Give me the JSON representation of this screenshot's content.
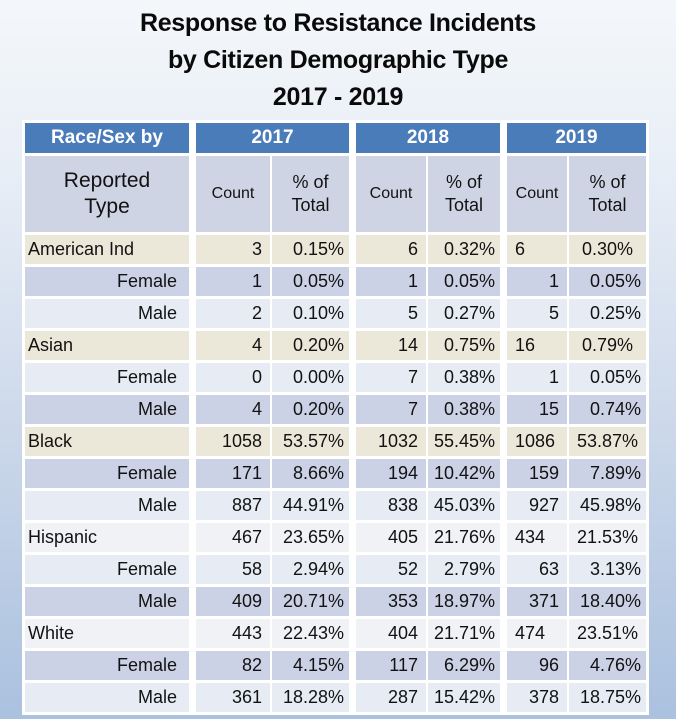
{
  "title": {
    "line1": "Response to Resistance Incidents",
    "line2": "by Citizen Demographic Type",
    "line3": "2017 - 2019"
  },
  "table": {
    "corner_header": "Race/Sex by",
    "row_header_line1": "Reported",
    "row_header_line2": "Type",
    "years": [
      "2017",
      "2018",
      "2019"
    ],
    "count_label": "Count",
    "pct_label_line1": "% of",
    "pct_label_line2": "Total"
  },
  "colors": {
    "header_blue": "#4b7cba",
    "header_gray": "#cfd4e4",
    "category_beige": "#ece8d9",
    "band_lavender": "#cbd2e6",
    "band_pale_blue": "#e6ebf4",
    "category_plain": "#f1f2f5",
    "page_top": "#f4f7fa",
    "page_bottom": "#aac1df"
  },
  "chart_data": {
    "type": "table",
    "title": "Response to Resistance Incidents by Citizen Demographic Type 2017 - 2019",
    "columns": [
      "Race/Sex by Reported Type",
      "2017 Count",
      "2017 % of Total",
      "2018 Count",
      "2018 % of Total",
      "2019 Count",
      "2019 % of Total"
    ],
    "rows": [
      {
        "label": "American Ind",
        "type": "category",
        "band": "beige",
        "values": [
          "3",
          "0.15%",
          "6",
          "0.32%",
          "6",
          "0.30%"
        ]
      },
      {
        "label": "Female",
        "type": "sub",
        "band": "dark",
        "values": [
          "1",
          "0.05%",
          "1",
          "0.05%",
          "1",
          "0.05%"
        ]
      },
      {
        "label": "Male",
        "type": "sub",
        "band": "light",
        "values": [
          "2",
          "0.10%",
          "5",
          "0.27%",
          "5",
          "0.25%"
        ]
      },
      {
        "label": "Asian",
        "type": "category",
        "band": "beige",
        "values": [
          "4",
          "0.20%",
          "14",
          "0.75%",
          "16",
          "0.79%"
        ]
      },
      {
        "label": "Female",
        "type": "sub",
        "band": "light",
        "values": [
          "0",
          "0.00%",
          "7",
          "0.38%",
          "1",
          "0.05%"
        ]
      },
      {
        "label": "Male",
        "type": "sub",
        "band": "dark",
        "values": [
          "4",
          "0.20%",
          "7",
          "0.38%",
          "15",
          "0.74%"
        ]
      },
      {
        "label": "Black",
        "type": "category",
        "band": "beige",
        "values": [
          "1058",
          "53.57%",
          "1032",
          "55.45%",
          "1086",
          "53.87%"
        ]
      },
      {
        "label": "Female",
        "type": "sub",
        "band": "dark",
        "values": [
          "171",
          "8.66%",
          "194",
          "10.42%",
          "159",
          "7.89%"
        ]
      },
      {
        "label": "Male",
        "type": "sub",
        "band": "light",
        "values": [
          "887",
          "44.91%",
          "838",
          "45.03%",
          "927",
          "45.98%"
        ]
      },
      {
        "label": "Hispanic",
        "type": "category",
        "band": "plain",
        "values": [
          "467",
          "23.65%",
          "405",
          "21.76%",
          "434",
          "21.53%"
        ]
      },
      {
        "label": "Female",
        "type": "sub",
        "band": "light",
        "values": [
          "58",
          "2.94%",
          "52",
          "2.79%",
          "63",
          "3.13%"
        ]
      },
      {
        "label": "Male",
        "type": "sub",
        "band": "dark",
        "values": [
          "409",
          "20.71%",
          "353",
          "18.97%",
          "371",
          "18.40%"
        ]
      },
      {
        "label": "White",
        "type": "category",
        "band": "plain",
        "values": [
          "443",
          "22.43%",
          "404",
          "21.71%",
          "474",
          "23.51%"
        ]
      },
      {
        "label": "Female",
        "type": "sub",
        "band": "dark",
        "values": [
          "82",
          "4.15%",
          "117",
          "6.29%",
          "96",
          "4.76%"
        ]
      },
      {
        "label": "Male",
        "type": "sub",
        "band": "light",
        "values": [
          "361",
          "18.28%",
          "287",
          "15.42%",
          "378",
          "18.75%"
        ]
      }
    ]
  }
}
